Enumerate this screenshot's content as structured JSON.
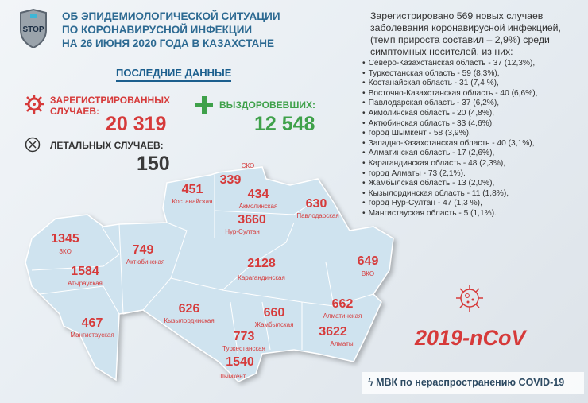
{
  "header": {
    "logo_text": "STOP",
    "title_lines": [
      "ОБ ЭПИДЕМИОЛОГИЧЕСКОЙ СИТУАЦИИ",
      "ПО КОРОНАВИРУСНОЙ ИНФЕКЦИИ",
      "НА 26 ИЮНЯ 2020 ГОДА В КАЗАХСТАНЕ"
    ]
  },
  "latest": {
    "heading": "ПОСЛЕДНИЕ ДАННЫЕ",
    "registered_label_1": "ЗАРЕГИСТРИРОВАННЫХ",
    "registered_label_2": "СЛУЧАЕВ:",
    "registered_value": "20 319",
    "recovered_label": "ВЫЗДОРОВЕВШИХ:",
    "recovered_value": "12 548",
    "deaths_label": "ЛЕТАЛЬНЫХ СЛУЧАЕВ:",
    "deaths_value": "150"
  },
  "new_cases": {
    "intro": "Зарегистрировано 569 новых случаев заболевания коронавирусной инфекцией, (темп прироста составил – 2,9%) среди симптомных носителей, из них:",
    "items": [
      "Северо-Казахстанская   область - 37 (12,3%),",
      "Туркестанская область - 59 (8,3%),",
      "Костанайская область - 31 (7,4 %),",
      "Восточно-Казахстанская область - 40 (6,6%),",
      "Павлодарская область - 37 (6,2%),",
      "Акмолинская область - 20 (4,8%),",
      "Актюбинская область - 33 (4,6%),",
      "город Шымкент - 58 (3,9%),",
      "Западно-Казахстанская область - 40 (3,1%),",
      "Алматинская область  - 17 (2,6%),",
      "Карагандинская область - 48 (2,3%),",
      "город Алматы - 73 (2,1%).",
      "Жамбылская область - 13 (2,0%),",
      "Кызылординская область - 11 (1,8%),",
      "город Нур-Султан - 47 (1,3 %),",
      "Мангистауская область - 5 (1,1%)."
    ]
  },
  "map": {
    "regions": [
      {
        "name": "СКО",
        "value": "339"
      },
      {
        "name": "Костанайская",
        "value": "451"
      },
      {
        "name": "Акмолинская",
        "value": "434"
      },
      {
        "name": "Нур-Султан",
        "value": "3660"
      },
      {
        "name": "Павлодарская",
        "value": "630"
      },
      {
        "name": "ЗКО",
        "value": "1345"
      },
      {
        "name": "Актюбинская",
        "value": "749"
      },
      {
        "name": "Карагандинская",
        "value": "2128"
      },
      {
        "name": "ВКО",
        "value": "649"
      },
      {
        "name": "Атырауская",
        "value": "1584"
      },
      {
        "name": "Кызылординская",
        "value": "626"
      },
      {
        "name": "Алматинская",
        "value": "662"
      },
      {
        "name": "Жамбылская",
        "value": "660"
      },
      {
        "name": "Мангистауская",
        "value": "467"
      },
      {
        "name": "Туркестанская",
        "value": "773"
      },
      {
        "name": "Алматы",
        "value": "3622"
      },
      {
        "name": "Шымкент",
        "value": "1540"
      }
    ]
  },
  "virus_label": "2019-nCoV",
  "footer": "МВК по нераспространению COVID-19",
  "colors": {
    "red": "#d63a3a",
    "green": "#3fa14a",
    "blue": "#2d6a92",
    "map_fill": "#cfe3ef"
  }
}
